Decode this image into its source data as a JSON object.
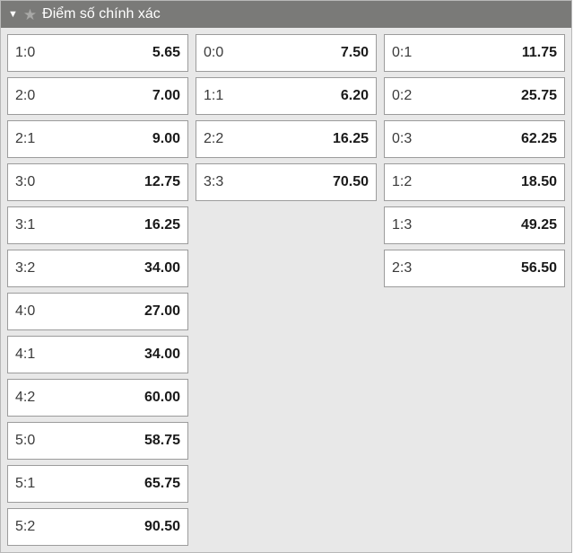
{
  "header": {
    "title": "Điểm số chính xác"
  },
  "columns": [
    [
      {
        "score": "1:0",
        "value": "5.65"
      },
      {
        "score": "2:0",
        "value": "7.00"
      },
      {
        "score": "2:1",
        "value": "9.00"
      },
      {
        "score": "3:0",
        "value": "12.75"
      },
      {
        "score": "3:1",
        "value": "16.25"
      },
      {
        "score": "3:2",
        "value": "34.00"
      },
      {
        "score": "4:0",
        "value": "27.00"
      },
      {
        "score": "4:1",
        "value": "34.00"
      },
      {
        "score": "4:2",
        "value": "60.00"
      },
      {
        "score": "5:0",
        "value": "58.75"
      },
      {
        "score": "5:1",
        "value": "65.75"
      },
      {
        "score": "5:2",
        "value": "90.50"
      }
    ],
    [
      {
        "score": "0:0",
        "value": "7.50"
      },
      {
        "score": "1:1",
        "value": "6.20"
      },
      {
        "score": "2:2",
        "value": "16.25"
      },
      {
        "score": "3:3",
        "value": "70.50"
      }
    ],
    [
      {
        "score": "0:1",
        "value": "11.75"
      },
      {
        "score": "0:2",
        "value": "25.75"
      },
      {
        "score": "0:3",
        "value": "62.25"
      },
      {
        "score": "1:2",
        "value": "18.50"
      },
      {
        "score": "1:3",
        "value": "49.25"
      },
      {
        "score": "2:3",
        "value": "56.50"
      }
    ]
  ],
  "styles": {
    "header_bg": "#7a7a78",
    "header_text": "#ffffff",
    "panel_bg": "#e8e8e8",
    "cell_bg": "#ffffff",
    "cell_border": "#9c9c9c",
    "panel_border": "#b8b8b8",
    "score_color": "#3a3a3a",
    "value_color": "#1a1a1a",
    "star_color": "#a8a8a6"
  }
}
